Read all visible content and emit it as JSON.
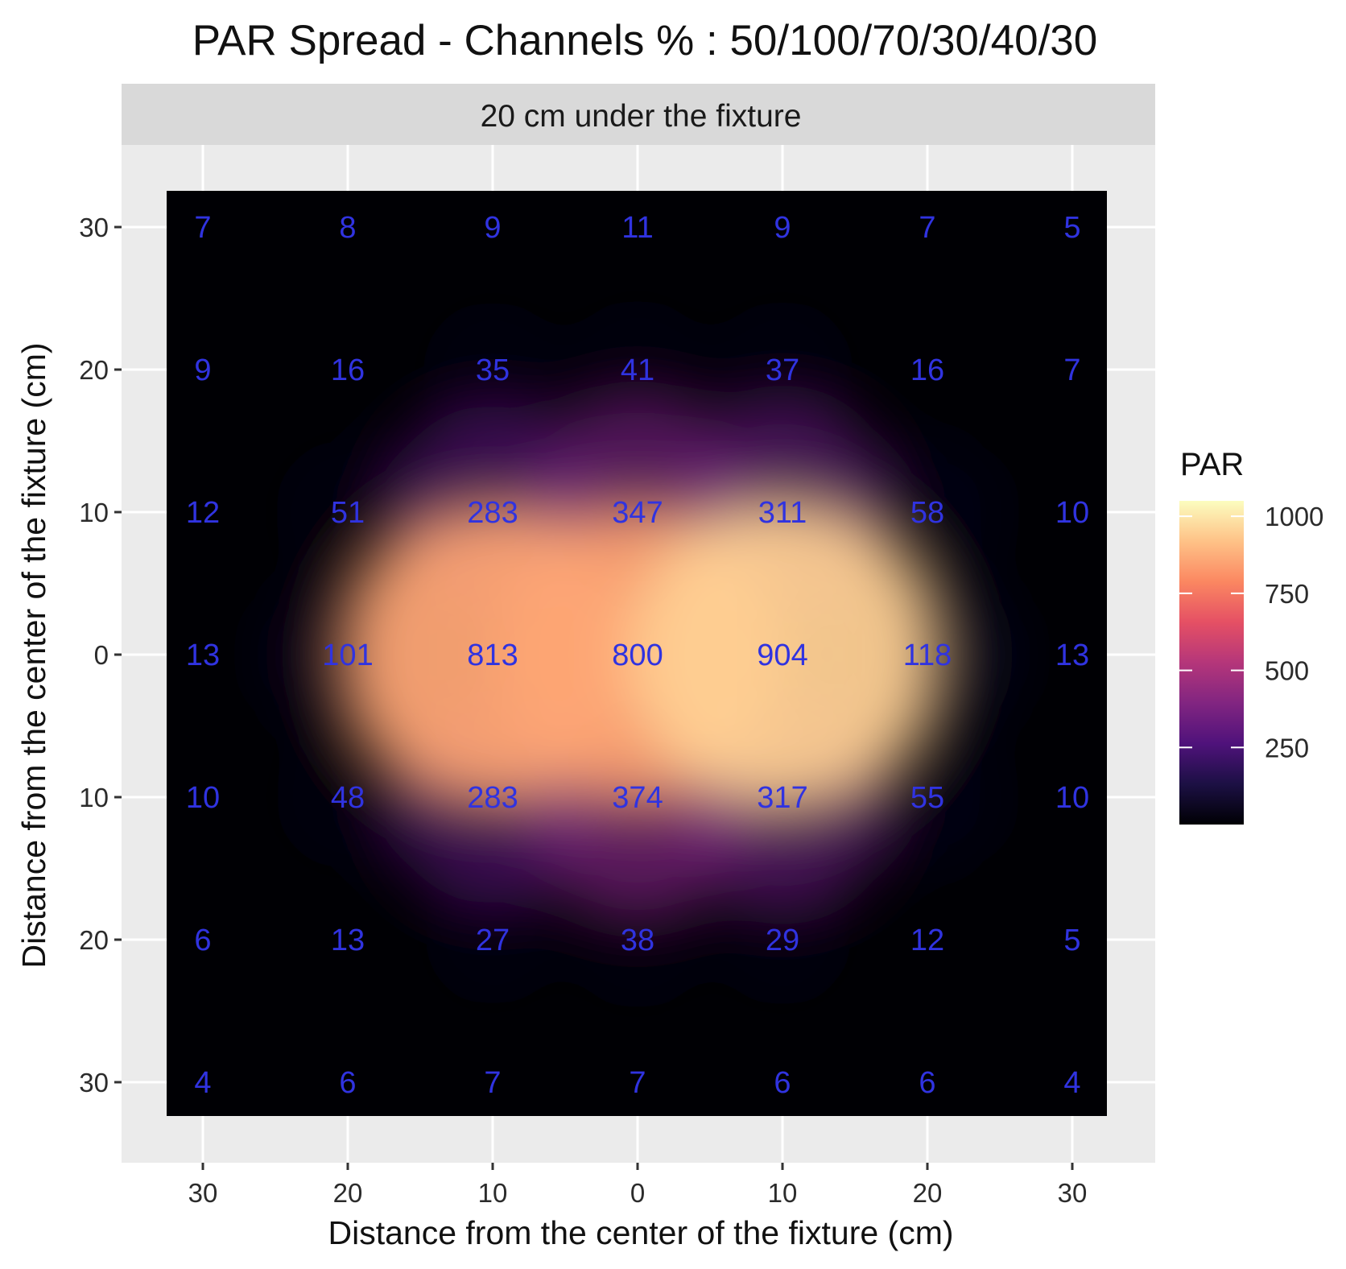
{
  "chart_data": {
    "type": "heatmap",
    "title": "PAR Spread - Channels % : 50/100/70/30/40/30",
    "facet_label": "20 cm under the fixture",
    "xlabel": "Distance from the center of the fixture (cm)",
    "ylabel": "Distance from the center of the fixture (cm)",
    "x_positions": [
      -30,
      -20,
      -10,
      0,
      10,
      20,
      30
    ],
    "y_positions": [
      30,
      20,
      10,
      0,
      -10,
      -20,
      -30
    ],
    "x_tick_labels": [
      "30",
      "20",
      "10",
      "0",
      "10",
      "20",
      "30"
    ],
    "y_tick_labels": [
      "30",
      "20",
      "10",
      "0",
      "10",
      "20",
      "30"
    ],
    "xlim": [
      -35,
      35
    ],
    "ylim": [
      -35,
      35
    ],
    "grid": true,
    "values": [
      [
        7,
        8,
        9,
        11,
        9,
        7,
        5
      ],
      [
        9,
        16,
        35,
        41,
        37,
        16,
        7
      ],
      [
        12,
        51,
        283,
        347,
        311,
        58,
        10
      ],
      [
        13,
        101,
        813,
        800,
        904,
        118,
        13
      ],
      [
        10,
        48,
        283,
        374,
        317,
        55,
        10
      ],
      [
        6,
        13,
        27,
        38,
        29,
        12,
        5
      ],
      [
        4,
        6,
        7,
        7,
        6,
        6,
        4
      ]
    ],
    "legend": {
      "title": "PAR",
      "ticks": [
        1000,
        750,
        500,
        250
      ],
      "tick_labels": [
        "1000",
        "750",
        "500",
        "250"
      ],
      "range": [
        0,
        1050
      ],
      "position": "right"
    },
    "colors": {
      "panel_bg": "#ebebeb",
      "strip_bg": "#d9d9d9",
      "grid": "#ffffff",
      "label": "#3033e0",
      "scale": [
        "#000004",
        "#1c1044",
        "#4f127b",
        "#812581",
        "#b5367a",
        "#e55064",
        "#fb8761",
        "#fec287",
        "#fcfdbf"
      ]
    }
  }
}
